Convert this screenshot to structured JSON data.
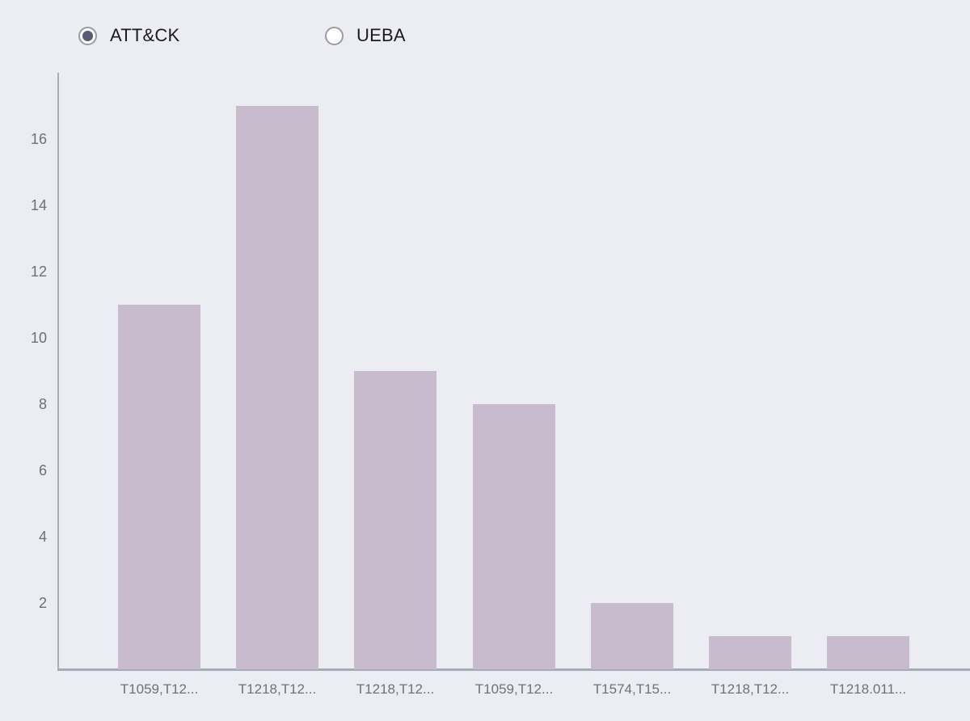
{
  "controls": {
    "options": [
      {
        "label": "ATT&CK",
        "selected": true
      },
      {
        "label": "UEBA",
        "selected": false
      }
    ]
  },
  "chart_data": {
    "type": "bar",
    "categories": [
      "T1059,T12...",
      "T1218,T12...",
      "T1218,T12...",
      "T1059,T12...",
      "T1574,T15...",
      "T1218,T12...",
      "T1218.011..."
    ],
    "values": [
      11,
      17,
      9,
      8,
      2,
      1,
      1
    ],
    "series_name": "ATT&CK",
    "title": "",
    "xlabel": "",
    "ylabel": "",
    "yticks": [
      2,
      4,
      6,
      8,
      10,
      12,
      14,
      16
    ],
    "ylim": [
      0,
      18
    ],
    "grid": false,
    "legend_position": "top",
    "colors": {
      "bar": "#c7bbcd",
      "axis": "#a6abb9",
      "tick_text": "#6e6e79",
      "background": "#ecedf2",
      "radio_selected": "#575b76"
    }
  }
}
